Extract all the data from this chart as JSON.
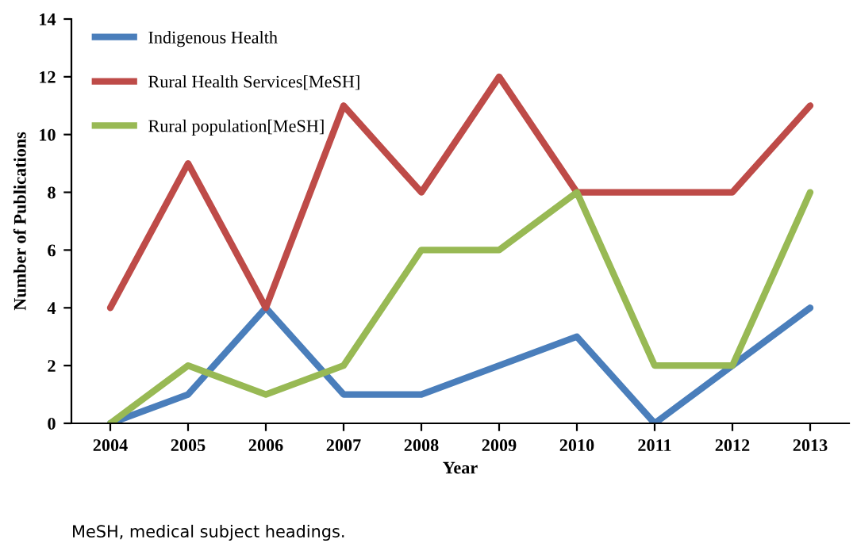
{
  "chart_data": {
    "type": "line",
    "xlabel": "Year",
    "ylabel": "Number of Publications",
    "categories": [
      "2004",
      "2005",
      "2006",
      "2007",
      "2008",
      "2009",
      "2010",
      "2011",
      "2012",
      "2013"
    ],
    "series": [
      {
        "name": "Indigenous Health",
        "color": "#4a7ebb",
        "values": [
          0,
          1,
          4,
          1,
          1,
          2,
          3,
          0,
          2,
          4
        ]
      },
      {
        "name": "Rural Health Services[MeSH]",
        "color": "#be4b48",
        "values": [
          4,
          9,
          4,
          11,
          8,
          12,
          8,
          8,
          8,
          11
        ]
      },
      {
        "name": "Rural population[MeSH]",
        "color": "#98b954",
        "values": [
          0,
          2,
          1,
          2,
          6,
          6,
          8,
          2,
          2,
          8
        ]
      }
    ],
    "ylim": [
      0,
      14
    ],
    "yticks": [
      0,
      2,
      4,
      6,
      8,
      10,
      12,
      14
    ],
    "grid": false,
    "legend": "top left",
    "marker": "none",
    "line_style": "solid",
    "annotations": [
      "MeSH, medical subject headings."
    ]
  }
}
